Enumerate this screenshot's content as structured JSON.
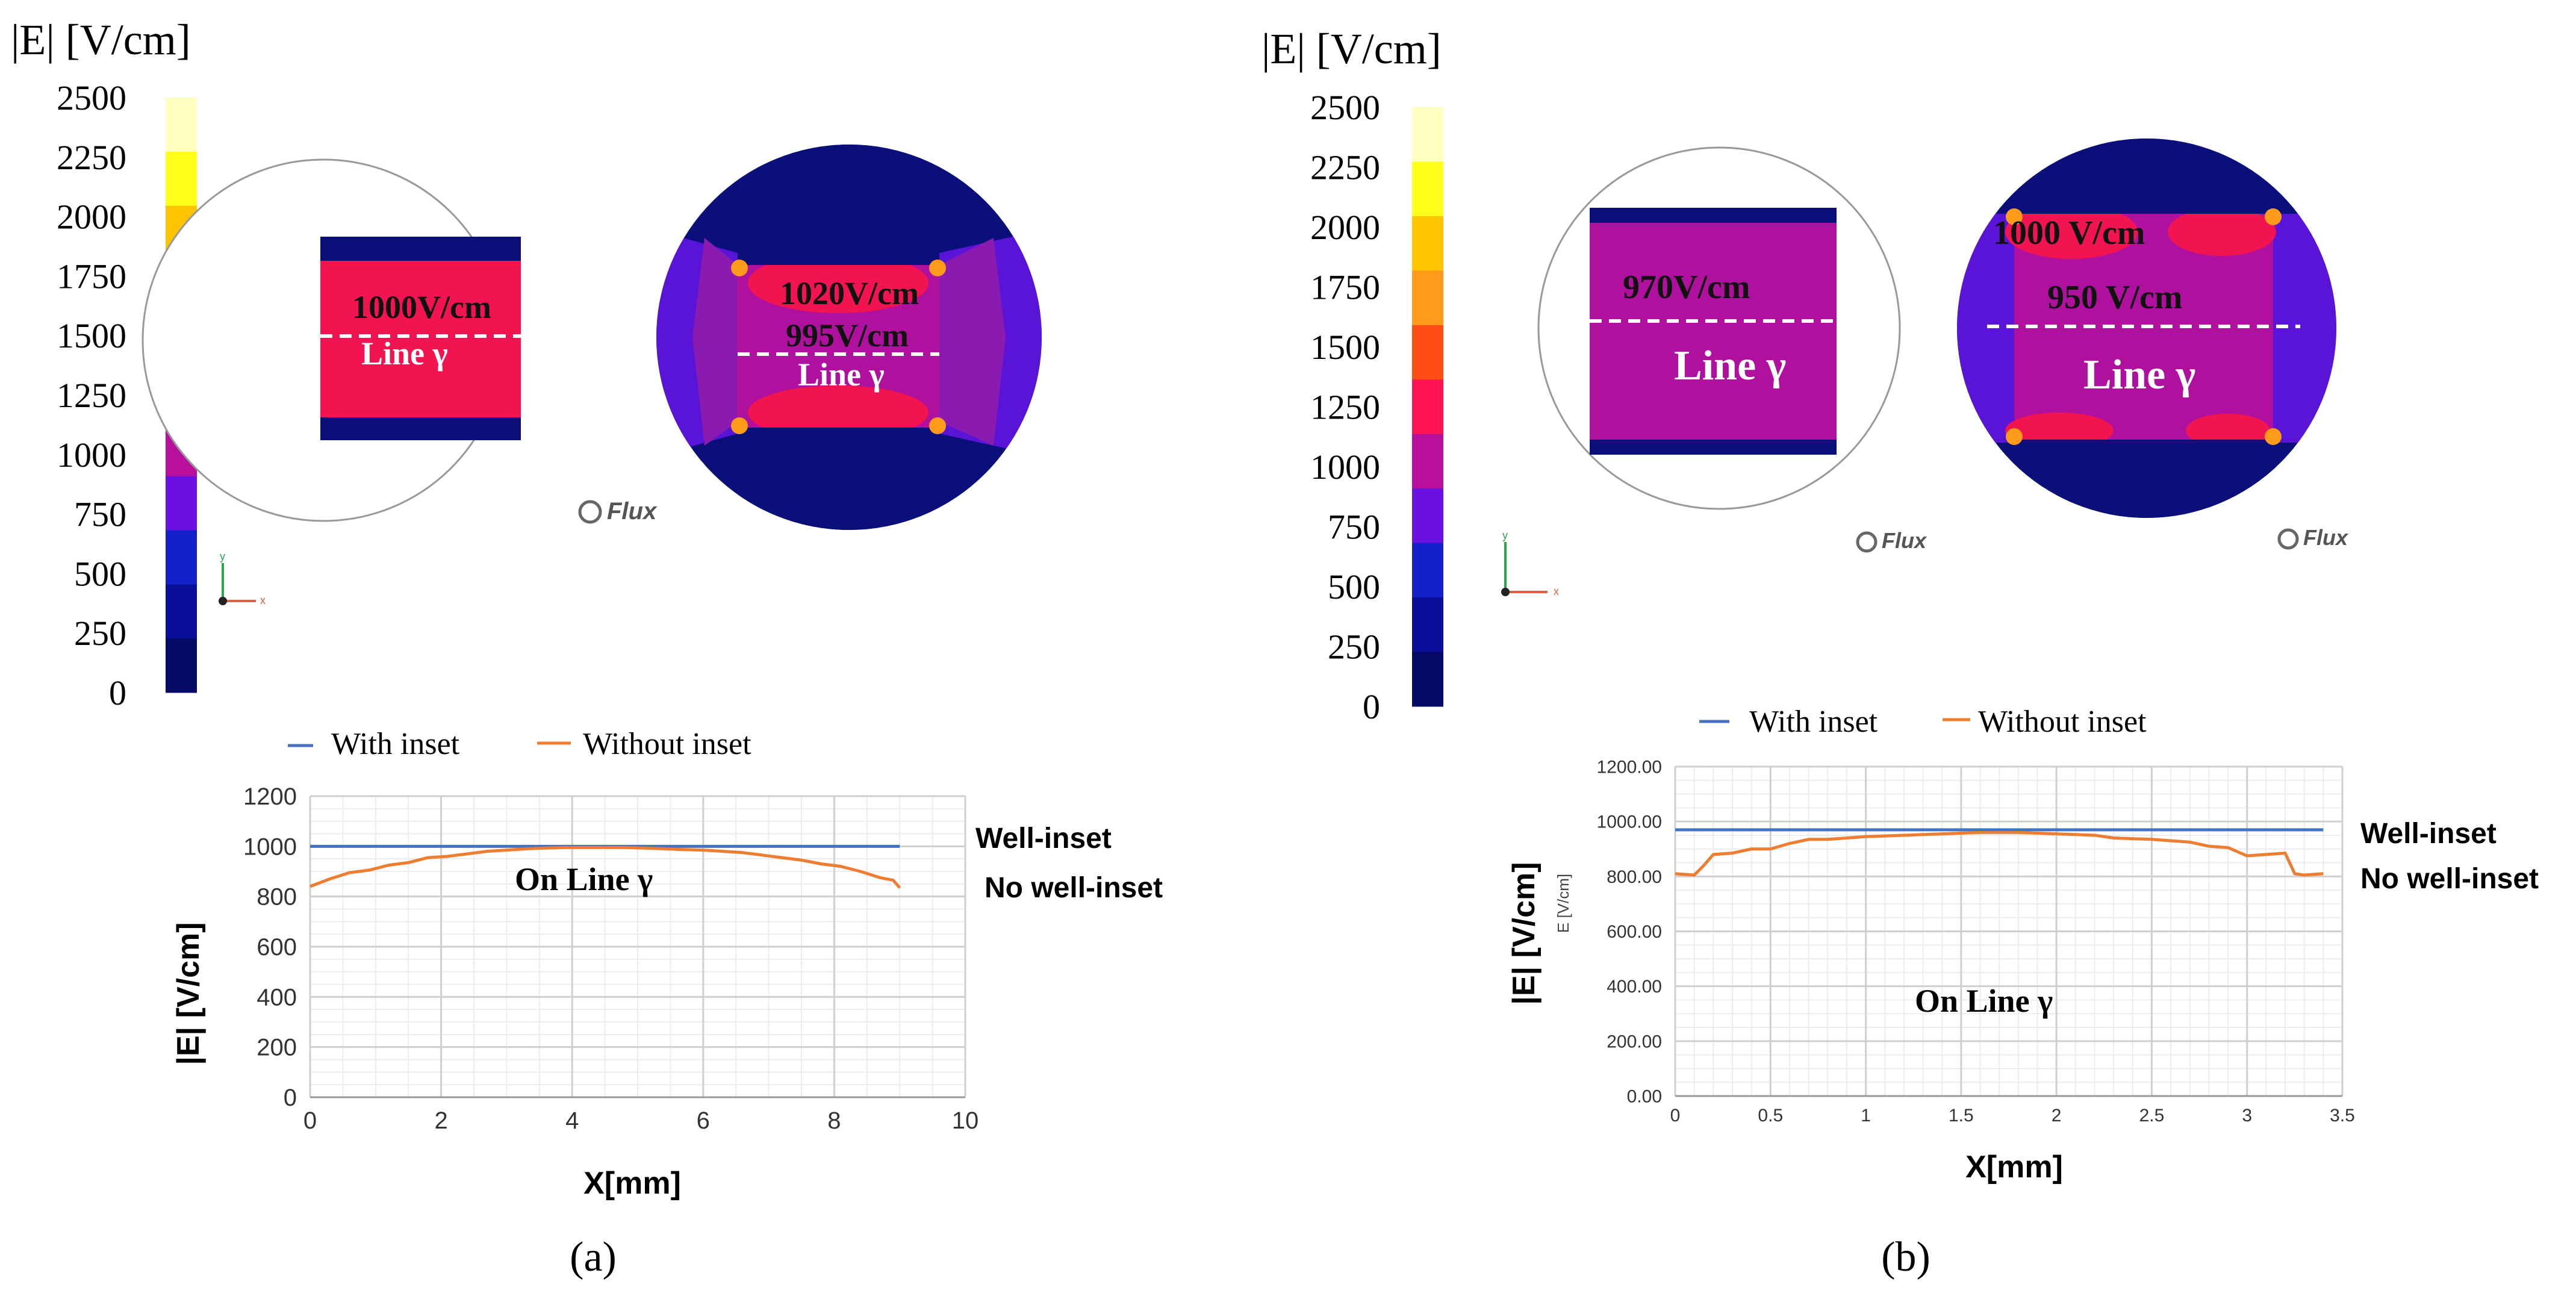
{
  "colorbar": {
    "title": "|E| [V/cm]",
    "ticks": [
      "2500",
      "2250",
      "2000",
      "1750",
      "1500",
      "1250",
      "1000",
      "750",
      "500",
      "250",
      "0"
    ],
    "colors": [
      "#ffffc0",
      "#ffff1a",
      "#ffc400",
      "#ff9a1a",
      "#ff4d14",
      "#ff1452",
      "#b8109c",
      "#6a10e0",
      "#1420c8",
      "#0a0f9a",
      "#050a66"
    ]
  },
  "panel_a": {
    "label": "(a)",
    "sim_left": {
      "value_label": "1000V/cm",
      "line_label": "Line γ"
    },
    "sim_right": {
      "value_top": "1020V/cm",
      "value_mid": "995V/cm",
      "line_label": "Line γ"
    },
    "logo": "Flux"
  },
  "panel_b": {
    "label": "(b)",
    "sim_left": {
      "value_label": "970V/cm",
      "line_label": "Line γ"
    },
    "sim_right": {
      "value_top": "1000 V/cm",
      "value_mid": "950 V/cm",
      "line_label": "Line γ"
    },
    "logo_left": "Flux",
    "logo_right": "Flux"
  },
  "axis_triad": {
    "y": "y",
    "x": "x"
  },
  "chart_data": [
    {
      "type": "line",
      "title": "",
      "xlabel": "X[mm]",
      "ylabel": "|E| [V/cm]",
      "xlim": [
        0,
        10
      ],
      "ylim": [
        0,
        1200
      ],
      "xticks": [
        "0",
        "2",
        "4",
        "6",
        "8",
        "10"
      ],
      "yticks": [
        "0",
        "200",
        "400",
        "600",
        "800",
        "1000",
        "1200"
      ],
      "legend": [
        "With inset",
        "Without inset"
      ],
      "annotations": {
        "on_line": "On Line γ",
        "well": "Well-inset",
        "no_well": "No well-inset"
      },
      "series": [
        {
          "name": "With inset",
          "color": "#4472c4",
          "x": [
            0,
            9
          ],
          "y": [
            1000,
            1000
          ]
        },
        {
          "name": "Without inset",
          "color": "#ed7d31",
          "x": [
            0,
            0.3,
            0.6,
            0.9,
            1.2,
            1.5,
            1.8,
            2.1,
            2.4,
            2.7,
            3.0,
            3.3,
            3.6,
            3.9,
            4.2,
            4.5,
            4.8,
            5.1,
            5.4,
            5.7,
            6.0,
            6.3,
            6.6,
            6.9,
            7.2,
            7.5,
            7.8,
            8.1,
            8.4,
            8.7,
            8.9,
            9.0
          ],
          "y": [
            840,
            870,
            895,
            905,
            925,
            935,
            955,
            960,
            970,
            980,
            985,
            990,
            993,
            995,
            995,
            995,
            995,
            993,
            990,
            987,
            985,
            980,
            975,
            965,
            955,
            945,
            930,
            920,
            900,
            875,
            865,
            835
          ]
        }
      ]
    },
    {
      "type": "line",
      "title": "",
      "xlabel": "X[mm]",
      "ylabel": "|E| [V/cm]",
      "ylabel_small": "E [V/cm]",
      "xlim": [
        0,
        3.5
      ],
      "ylim": [
        0,
        1200
      ],
      "xticks": [
        "0",
        "0.5",
        "1",
        "1.5",
        "2",
        "2.5",
        "3",
        "3.5"
      ],
      "yticks": [
        "0.00",
        "200.00",
        "400.00",
        "600.00",
        "800.00",
        "1000.00",
        "1200.00"
      ],
      "legend": [
        "With inset",
        "Without inset"
      ],
      "annotations": {
        "on_line": "On Line γ",
        "well": "Well-inset",
        "no_well": "No well-inset"
      },
      "series": [
        {
          "name": "With inset",
          "color": "#4472c4",
          "x": [
            0,
            3.4
          ],
          "y": [
            970,
            970
          ]
        },
        {
          "name": "Without inset",
          "color": "#ed7d31",
          "x": [
            0,
            0.1,
            0.15,
            0.2,
            0.3,
            0.4,
            0.5,
            0.6,
            0.7,
            0.8,
            0.9,
            1.0,
            1.2,
            1.4,
            1.6,
            1.8,
            2.0,
            2.2,
            2.3,
            2.5,
            2.7,
            2.8,
            2.9,
            3.0,
            3.1,
            3.2,
            3.25,
            3.3,
            3.4
          ],
          "y": [
            810,
            805,
            840,
            880,
            885,
            900,
            900,
            920,
            935,
            935,
            940,
            945,
            950,
            955,
            960,
            960,
            955,
            950,
            940,
            935,
            925,
            910,
            905,
            875,
            880,
            885,
            810,
            805,
            810
          ]
        }
      ]
    }
  ]
}
